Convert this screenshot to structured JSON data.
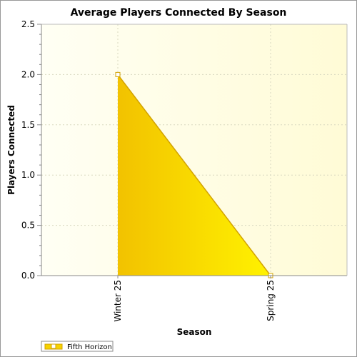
{
  "chart_data": {
    "type": "area",
    "title": "Average Players Connected By Season",
    "xlabel": "Season",
    "ylabel": "Players Connected",
    "categories": [
      "Winter 25",
      "Spring 25"
    ],
    "series": [
      {
        "name": "Fifth Horizon",
        "values": [
          2.0,
          0.0
        ]
      }
    ],
    "ylim": [
      0,
      2.5
    ],
    "yticks": [
      "0.0",
      "0.5",
      "1.0",
      "1.5",
      "2.0",
      "2.5"
    ],
    "grid": true,
    "legend": "bottom-left",
    "colors": {
      "fill_light": "#fff200",
      "fill_dark": "#f2c200",
      "line": "#d2a200",
      "plot_bg_light": "#fffbd6",
      "plot_bg_dark": "#fffff4"
    }
  }
}
